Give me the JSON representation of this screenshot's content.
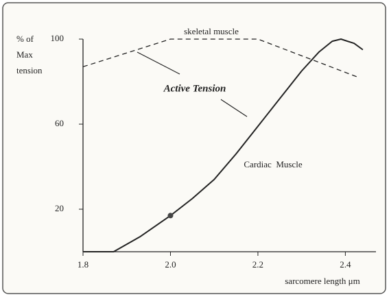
{
  "chart_data": {
    "type": "line",
    "annotation": "Active Tension",
    "y_label": [
      "% of",
      "Max",
      "tension"
    ],
    "x_label": "sarcomere length  μm",
    "xlim": [
      1.8,
      2.47
    ],
    "xticks": [
      1.8,
      {
        "value": 2,
        "label": "2.0"
      },
      2.2,
      2.4
    ],
    "ylim": [
      0,
      100
    ],
    "yticks": [
      20,
      60,
      100
    ],
    "series": [
      {
        "name": "skeletal muscle",
        "color": "#222222",
        "dashed": true,
        "x": [
          1.8,
          2.0,
          2.2,
          2.43
        ],
        "values": [
          87,
          100,
          100,
          82
        ]
      },
      {
        "name": "Cardiac  Muscle",
        "color": "#222222",
        "dashed": false,
        "x": [
          1.8,
          1.87,
          1.93,
          2.0,
          2.05,
          2.1,
          2.15,
          2.2,
          2.25,
          2.3,
          2.34,
          2.37,
          2.39,
          2.42,
          2.44
        ],
        "values": [
          0,
          0,
          7,
          17,
          25,
          34,
          46,
          59,
          72,
          85,
          94,
          99,
          100,
          98,
          95
        ]
      }
    ]
  }
}
